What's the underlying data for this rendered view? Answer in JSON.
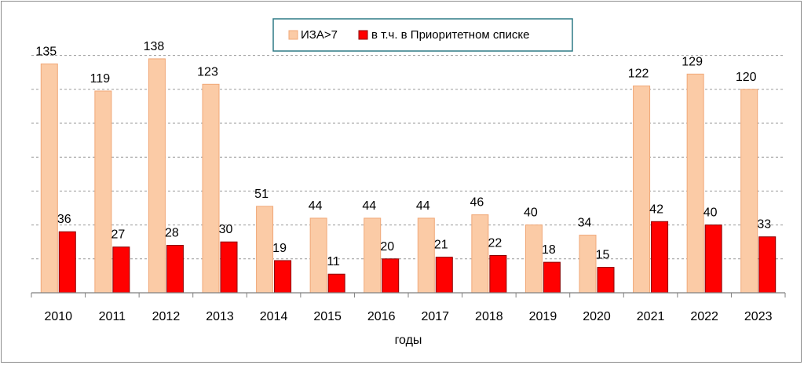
{
  "chart_data": {
    "type": "bar",
    "title": "",
    "xlabel": "годы",
    "ylabel": "",
    "ylim": [
      0,
      150
    ],
    "grid": "horizontal dashed",
    "legend_placement": "top-center",
    "categories": [
      "2010",
      "2011",
      "2012",
      "2013",
      "2014",
      "2015",
      "2016",
      "2017",
      "2018",
      "2019",
      "2020",
      "2021",
      "2022",
      "2023"
    ],
    "series": [
      {
        "name": "ИЗА>7",
        "color": "#FBCBA6",
        "stroke": "#F0A878",
        "values": [
          135,
          119,
          138,
          123,
          51,
          44,
          44,
          44,
          46,
          40,
          34,
          122,
          129,
          120
        ]
      },
      {
        "name": "в т.ч. в Приоритетном списке",
        "color": "#FF0000",
        "stroke": "#8B0000",
        "values": [
          36,
          27,
          28,
          30,
          19,
          11,
          20,
          21,
          22,
          18,
          15,
          42,
          40,
          33
        ]
      }
    ]
  }
}
